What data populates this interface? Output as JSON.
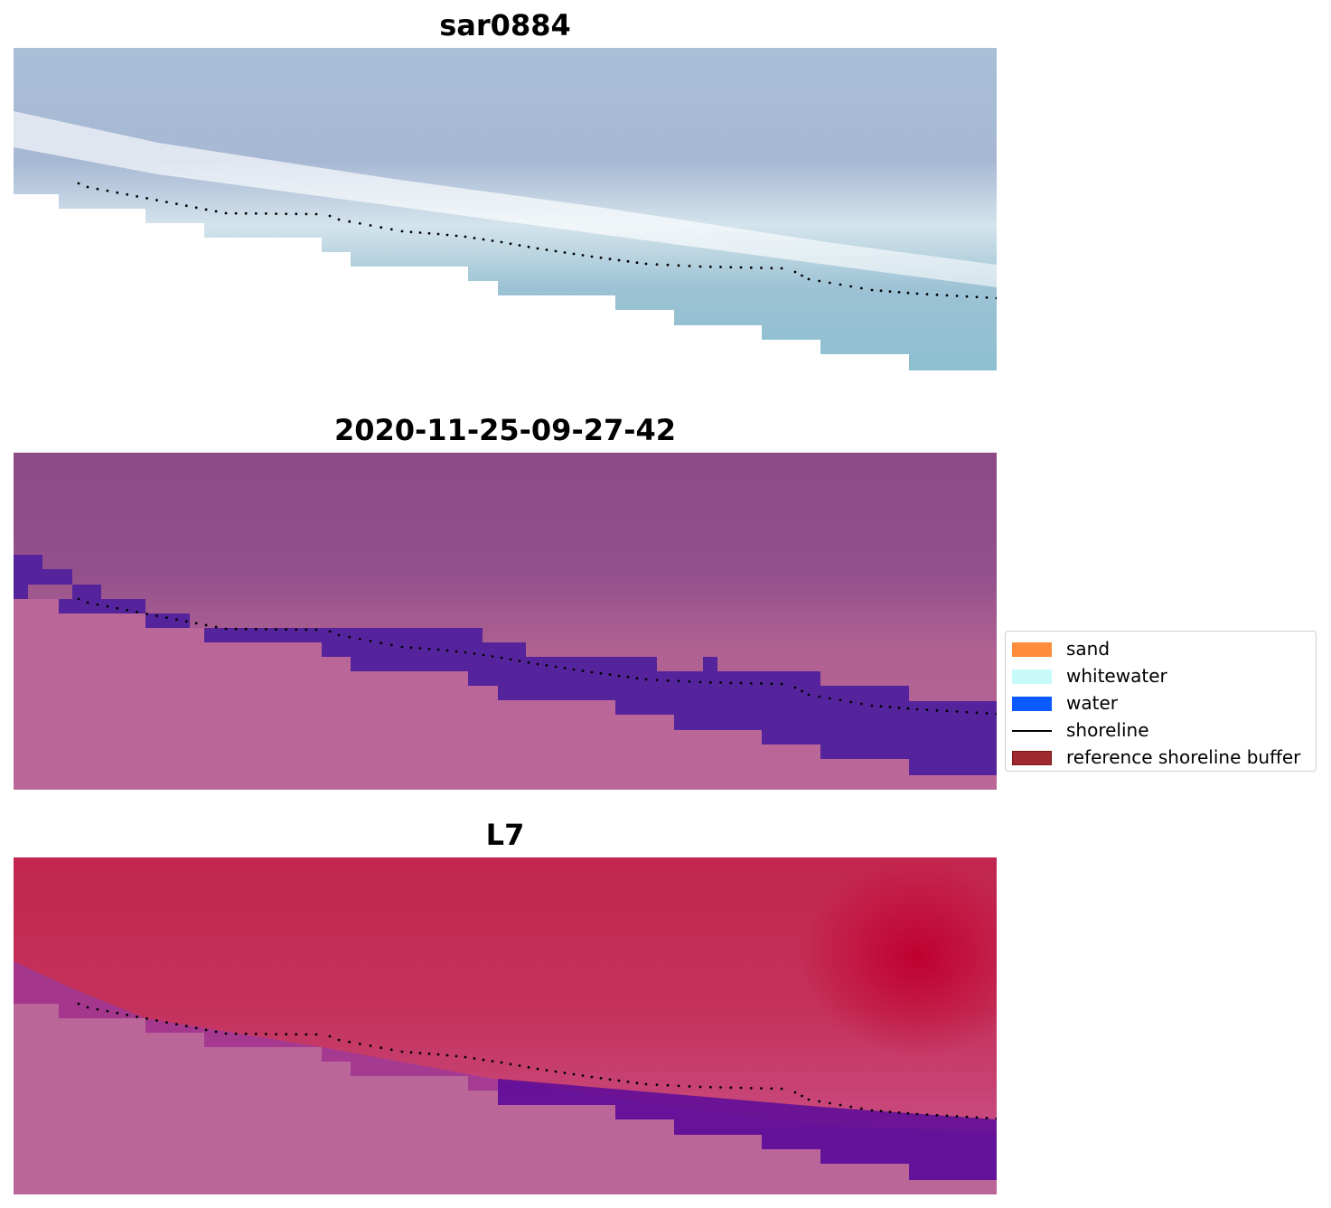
{
  "panels": [
    {
      "title": "sar0884",
      "kind": "rgb"
    },
    {
      "title": "2020-11-25-09-27-42",
      "kind": "classified"
    },
    {
      "title": "L7",
      "kind": "index"
    }
  ],
  "legend": [
    {
      "label": "sand",
      "color": "#ff8c3a",
      "type": "patch"
    },
    {
      "label": "whitewater",
      "color": "#c8fafa",
      "type": "patch"
    },
    {
      "label": "water",
      "color": "#0a5aff",
      "type": "patch"
    },
    {
      "label": "shoreline",
      "color": "#000000",
      "type": "line"
    },
    {
      "label": "reference shoreline buffer",
      "color": "#9e2a2f",
      "type": "patch"
    }
  ],
  "colors": {
    "masked": "#ffffff",
    "land_pink": "#bb6699",
    "water_purple": "#55249c",
    "red_index": "#c4244f",
    "shoreline": "#000000"
  }
}
